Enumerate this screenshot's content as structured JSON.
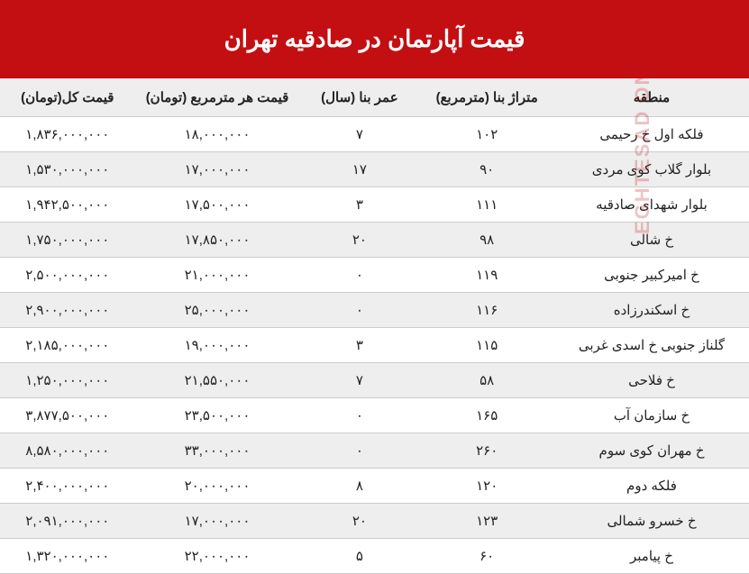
{
  "title": "قیمت آپارتمان در صادقیه تهران",
  "columns": {
    "region": "منطقه",
    "area": "متراژ بنا (مترمربع)",
    "age": "عمر بنا (سال)",
    "price_per_m": "قیمت هر مترمربع (تومان)",
    "total_price": "قیمت کل(تومان)"
  },
  "rows": [
    {
      "region": "فلکه اول خ رحیمی",
      "area": "۱۰۲",
      "age": "۷",
      "ppm": "۱۸,۰۰۰,۰۰۰",
      "total": "۱,۸۳۶,۰۰۰,۰۰۰"
    },
    {
      "region": "بلوار گلاب کوی مردی",
      "area": "۹۰",
      "age": "۱۷",
      "ppm": "۱۷,۰۰۰,۰۰۰",
      "total": "۱,۵۳۰,۰۰۰,۰۰۰"
    },
    {
      "region": "بلوار شهدای صادقیه",
      "area": "۱۱۱",
      "age": "۳",
      "ppm": "۱۷,۵۰۰,۰۰۰",
      "total": "۱,۹۴۲,۵۰۰,۰۰۰"
    },
    {
      "region": "خ شالی",
      "area": "۹۸",
      "age": "۲۰",
      "ppm": "۱۷,۸۵۰,۰۰۰",
      "total": "۱,۷۵۰,۰۰۰,۰۰۰"
    },
    {
      "region": "خ امیرکبیر جنوبی",
      "area": "۱۱۹",
      "age": "۰",
      "ppm": "۲۱,۰۰۰,۰۰۰",
      "total": "۲,۵۰۰,۰۰۰,۰۰۰"
    },
    {
      "region": "خ اسکندرزاده",
      "area": "۱۱۶",
      "age": "۰",
      "ppm": "۲۵,۰۰۰,۰۰۰",
      "total": "۲,۹۰۰,۰۰۰,۰۰۰"
    },
    {
      "region": "گلناز جنوبی خ اسدی غربی",
      "area": "۱۱۵",
      "age": "۳",
      "ppm": "۱۹,۰۰۰,۰۰۰",
      "total": "۲,۱۸۵,۰۰۰,۰۰۰"
    },
    {
      "region": "خ فلاحی",
      "area": "۵۸",
      "age": "۷",
      "ppm": "۲۱,۵۵۰,۰۰۰",
      "total": "۱,۲۵۰,۰۰۰,۰۰۰"
    },
    {
      "region": "خ سازمان آب",
      "area": "۱۶۵",
      "age": "۰",
      "ppm": "۲۳,۵۰۰,۰۰۰",
      "total": "۳,۸۷۷,۵۰۰,۰۰۰"
    },
    {
      "region": "خ مهران کوی سوم",
      "area": "۲۶۰",
      "age": "۰",
      "ppm": "۳۳,۰۰۰,۰۰۰",
      "total": "۸,۵۸۰,۰۰۰,۰۰۰"
    },
    {
      "region": "فلکه دوم",
      "area": "۱۲۰",
      "age": "۸",
      "ppm": "۲۰,۰۰۰,۰۰۰",
      "total": "۲,۴۰۰,۰۰۰,۰۰۰"
    },
    {
      "region": "خ خسرو شمالی",
      "area": "۱۲۳",
      "age": "۲۰",
      "ppm": "۱۷,۰۰۰,۰۰۰",
      "total": "۲,۰۹۱,۰۰۰,۰۰۰"
    },
    {
      "region": "خ پیامبر",
      "area": "۶۰",
      "age": "۵",
      "ppm": "۲۲,۰۰۰,۰۰۰",
      "total": "۱,۳۲۰,۰۰۰,۰۰۰"
    }
  ],
  "watermark": "EGHTESAD ONLINE.com",
  "colors": {
    "header_bg": "#c40f12",
    "header_text": "#ffffff",
    "row_alt_bg": "#eeeeee",
    "row_bg": "#ffffff",
    "border": "#cccccc",
    "text": "#222222",
    "watermark": "rgba(196,15,18,0.25)"
  }
}
